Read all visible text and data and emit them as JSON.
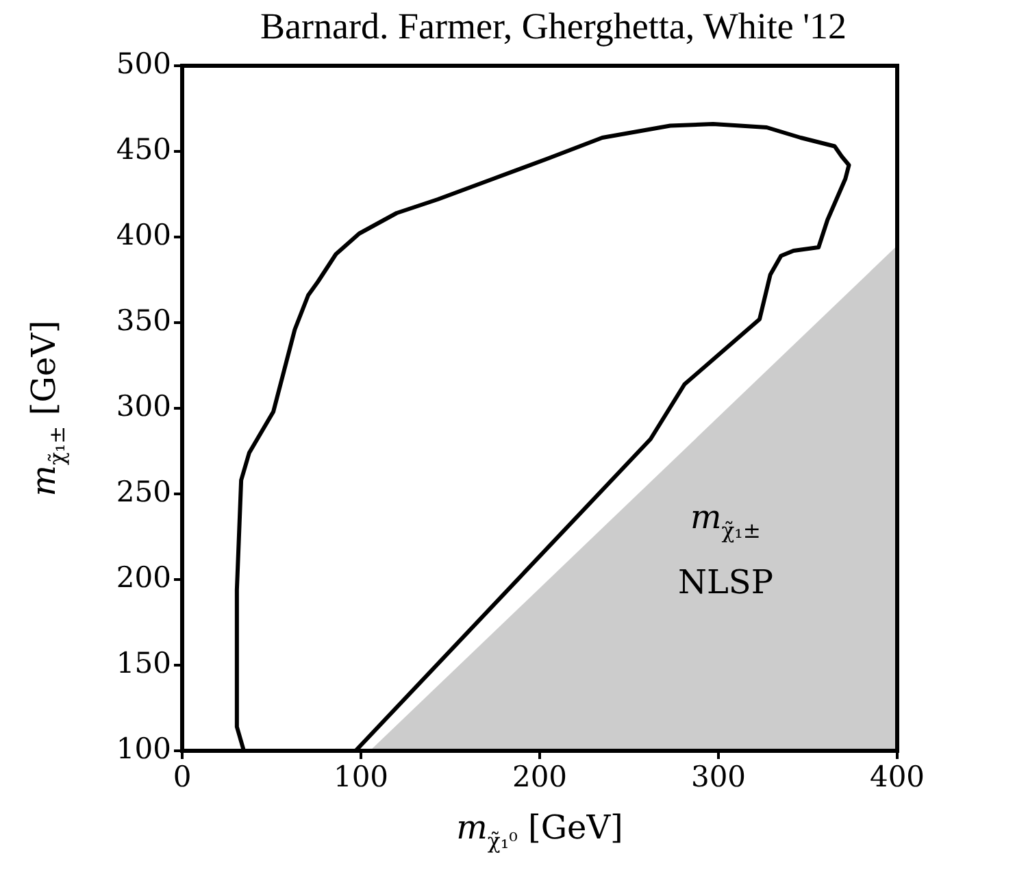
{
  "chart_data": {
    "type": "line",
    "title": "Barnard. Farmer, Gherghetta, White '12",
    "xlabel": "m$_{χ̃₁⁰}$ [GeV]",
    "ylabel": "m$_{χ̃₁±}$ [GeV]",
    "xlim": [
      0,
      400
    ],
    "ylim": [
      100,
      500
    ],
    "xticks": [
      0,
      100,
      200,
      300,
      400
    ],
    "yticks": [
      100,
      150,
      200,
      250,
      300,
      350,
      400,
      450,
      500
    ],
    "grid": false,
    "legend": false,
    "marker": "none",
    "line_style": "solid",
    "series": [
      {
        "type": "area",
        "color": "#cccccc",
        "x": [
          105,
          400
        ],
        "values": [
          100,
          395
        ]
      },
      {
        "type": "line",
        "color": "#000000",
        "x": [
          34.5,
          30.6,
          30.6,
          33,
          37.5,
          42,
          51,
          57,
          63,
          70.5,
          76,
          86,
          99,
          120,
          143,
          174,
          205,
          235,
          273,
          297,
          327,
          346,
          365,
          369,
          373,
          371,
          361,
          356,
          342,
          335,
          329,
          323,
          281,
          262,
          97
        ],
        "values": [
          100,
          114,
          194,
          258,
          274,
          282,
          298,
          322,
          346,
          366,
          374,
          390,
          402,
          414,
          422,
          434,
          446,
          458,
          465,
          466,
          464,
          458,
          453,
          447,
          442,
          434,
          410,
          394,
          392,
          389,
          378,
          352,
          314,
          282,
          100
        ]
      }
    ],
    "annotations": [
      "m$_{χ̃₁±}$",
      "NLSP"
    ]
  }
}
